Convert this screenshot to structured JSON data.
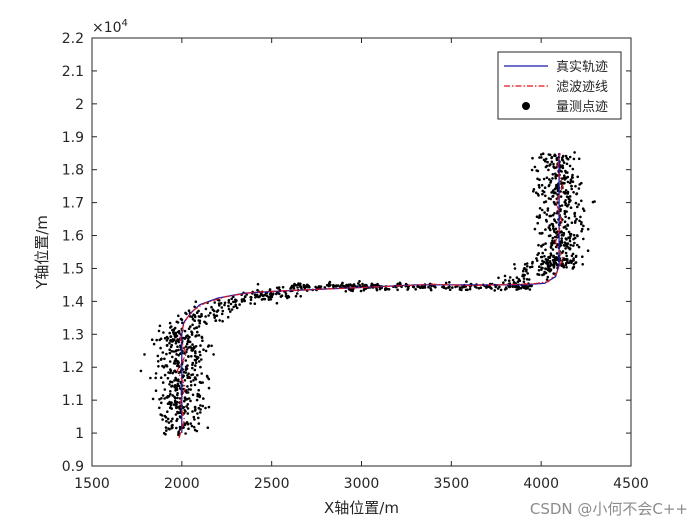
{
  "chart_data": {
    "type": "line",
    "xlabel": "X轴位置/m",
    "ylabel": "Y轴位置/m",
    "xlim": [
      1500,
      4500
    ],
    "ylim": [
      9000,
      22000
    ],
    "xticks": [
      1500,
      2000,
      2500,
      3000,
      3500,
      4000,
      4500
    ],
    "yticks": [
      9000,
      10000,
      11000,
      12000,
      13000,
      14000,
      15000,
      16000,
      17000,
      18000,
      19000,
      20000,
      21000,
      22000
    ],
    "ytick_labels": [
      "0.9",
      "1",
      "1.1",
      "1.2",
      "1.3",
      "1.4",
      "1.5",
      "1.6",
      "1.7",
      "1.8",
      "1.9",
      "2",
      "2.1",
      "2.2"
    ],
    "y_exponent_label": "×10",
    "y_exponent_power": "4",
    "grid": false,
    "legend_position": "top-right",
    "series": [
      {
        "name": "真实轨迹",
        "style": "solid-line",
        "color": "#1a1aa6",
        "x": [
          2000,
          2000,
          2010,
          2050,
          2100,
          2200,
          2350,
          2500,
          2700,
          2900,
          3100,
          3300,
          3500,
          3700,
          3900,
          4020,
          4080,
          4100,
          4100,
          4100
        ],
        "y": [
          10000,
          13000,
          13350,
          13650,
          13900,
          14100,
          14250,
          14300,
          14350,
          14400,
          14450,
          14500,
          14500,
          14500,
          14500,
          14550,
          14750,
          15100,
          17000,
          18500
        ]
      },
      {
        "name": "滤波迹线",
        "style": "dash-dot-line",
        "color": "#e0141e",
        "x": [
          1985,
          2015,
          1990,
          2020,
          1975,
          2025,
          1990,
          2010,
          2030,
          2070,
          2130,
          2250,
          2400,
          2600,
          2800,
          3000,
          3200,
          3400,
          3600,
          3800,
          3950,
          4040,
          4085,
          4120,
          4080,
          4115,
          4085,
          4120,
          4090,
          4105
        ],
        "y": [
          9850,
          10400,
          10900,
          11400,
          11900,
          12400,
          12900,
          13300,
          13500,
          13750,
          13950,
          14150,
          14280,
          14330,
          14380,
          14420,
          14470,
          14520,
          14480,
          14510,
          14530,
          14600,
          14850,
          15300,
          15800,
          16400,
          17000,
          17500,
          18000,
          18500
        ]
      },
      {
        "name": "量测点迹",
        "style": "scatter",
        "color": "#000000",
        "clusters": [
          {
            "segment": "vertical",
            "x_center": 2000,
            "x_spread": 130,
            "y_from": 10000,
            "y_to": 13200,
            "count": 420
          },
          {
            "segment": "curve",
            "x_from": 2000,
            "x_to": 2600,
            "y_from": 13200,
            "y_to": 14300,
            "count": 170
          },
          {
            "segment": "horizontal",
            "x_from": 2600,
            "x_to": 3950,
            "y_center": 14450,
            "y_spread": 90,
            "count": 260
          },
          {
            "segment": "curve",
            "x_from": 3850,
            "x_to": 4120,
            "y_from": 14450,
            "y_to": 15200,
            "count": 110
          },
          {
            "segment": "vertical",
            "x_center": 4100,
            "x_spread": 120,
            "y_from": 15000,
            "y_to": 18500,
            "count": 420
          }
        ]
      }
    ]
  },
  "watermark": "CSDN @小何不会C++"
}
